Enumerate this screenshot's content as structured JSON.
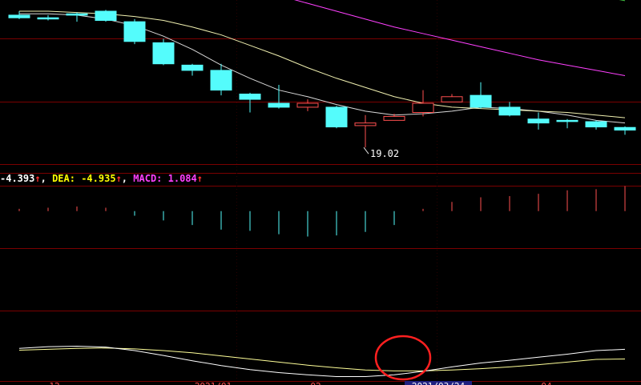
{
  "macd_legend": {
    "dif_text": "-4.393",
    "dea_label": "DEA:",
    "dea_value": "-4.935",
    "macd_label": "MACD:",
    "macd_value": "1.084",
    "arrow": "↑",
    "separator": ","
  },
  "colors": {
    "up": "#ff5050",
    "down": "#54fcfc",
    "ma5": "#d8d8d8",
    "ma10": "#f0f0b0",
    "ma20": "#ff40ff",
    "ma60": "#40c040",
    "grid": "#7a0000",
    "dif": "#ffffff",
    "dea": "#ffff99",
    "highlight": "#ff2020"
  },
  "chart_data": {
    "type": "candlestick",
    "low_annotation": "19.02",
    "x_tick_labels": [
      "12",
      "2021/01",
      "02",
      "2021/03/24",
      "04"
    ],
    "price_range": [
      18.6,
      24.2
    ],
    "candles": [
      {
        "open": 24.05,
        "close": 23.95,
        "high": 24.2,
        "low": 23.9
      },
      {
        "open": 23.95,
        "close": 23.95,
        "high": 24.05,
        "low": 23.85
      },
      {
        "open": 24.1,
        "close": 24.05,
        "high": 24.15,
        "low": 23.8
      },
      {
        "open": 24.2,
        "close": 23.85,
        "high": 24.25,
        "low": 23.8
      },
      {
        "open": 23.8,
        "close": 23.05,
        "high": 23.9,
        "low": 22.95
      },
      {
        "open": 23.0,
        "close": 22.2,
        "high": 23.15,
        "low": 22.15
      },
      {
        "open": 22.15,
        "close": 21.95,
        "high": 22.2,
        "low": 21.75
      },
      {
        "open": 21.95,
        "close": 21.2,
        "high": 22.2,
        "low": 21.0
      },
      {
        "open": 21.05,
        "close": 20.85,
        "high": 21.1,
        "low": 20.35
      },
      {
        "open": 20.7,
        "close": 20.55,
        "high": 21.4,
        "low": 20.5
      },
      {
        "open": 20.55,
        "close": 20.7,
        "high": 20.85,
        "low": 20.4
      },
      {
        "open": 20.55,
        "close": 19.8,
        "high": 20.6,
        "low": 19.75
      },
      {
        "open": 19.85,
        "close": 19.95,
        "high": 20.25,
        "low": 19.02
      },
      {
        "open": 20.05,
        "close": 20.2,
        "high": 20.3,
        "low": 20.05
      },
      {
        "open": 20.35,
        "close": 20.7,
        "high": 21.2,
        "low": 20.2
      },
      {
        "open": 20.75,
        "close": 20.95,
        "high": 21.05,
        "low": 20.75
      },
      {
        "open": 21.0,
        "close": 20.55,
        "high": 21.5,
        "low": 20.5
      },
      {
        "open": 20.55,
        "close": 20.25,
        "high": 20.75,
        "low": 20.2
      },
      {
        "open": 20.1,
        "close": 19.95,
        "high": 20.35,
        "low": 19.7
      },
      {
        "open": 20.05,
        "close": 20.05,
        "high": 20.1,
        "low": 19.75
      },
      {
        "open": 20.0,
        "close": 19.8,
        "high": 20.05,
        "low": 19.7
      },
      {
        "open": 19.78,
        "close": 19.68,
        "high": 19.82,
        "low": 19.5
      }
    ],
    "ma_lines": [
      {
        "key": "ma5",
        "values": [
          24.1,
          24.1,
          24.05,
          23.9,
          23.65,
          23.25,
          22.75,
          22.15,
          21.65,
          21.2,
          20.95,
          20.65,
          20.4,
          20.25,
          20.3,
          20.4,
          20.55,
          20.5,
          20.4,
          20.25,
          20.05,
          19.95
        ]
      },
      {
        "key": "ma10",
        "values": [
          24.2,
          24.2,
          24.15,
          24.1,
          24.0,
          23.85,
          23.6,
          23.3,
          22.9,
          22.5,
          22.05,
          21.65,
          21.3,
          20.95,
          20.7,
          20.55,
          20.5,
          20.45,
          20.4,
          20.35,
          20.25,
          20.15
        ]
      },
      {
        "key": "ma20",
        "start": 4,
        "values": [
          25.8,
          25.65,
          25.45,
          25.25,
          25.05,
          24.8,
          24.5,
          24.2,
          23.9,
          23.6,
          23.35,
          23.1,
          22.85,
          22.6,
          22.35,
          22.15,
          21.95,
          21.75
        ]
      },
      {
        "key": "ma60",
        "start": 12,
        "values": [
          26.45,
          26.2,
          26.0,
          25.8,
          25.6,
          25.4,
          25.2,
          25.0,
          24.8,
          24.6
        ]
      }
    ],
    "macd_range": [
      -1.6,
      1.1
    ],
    "macd_bars": [
      0.1,
      0.15,
      0.2,
      0.15,
      -0.2,
      -0.4,
      -0.6,
      -0.8,
      -0.85,
      -1.0,
      -1.1,
      -1.05,
      -0.9,
      -0.6,
      0.1,
      0.4,
      0.6,
      0.65,
      0.75,
      0.9,
      0.95,
      1.084
    ],
    "dif_dea_range": [
      -12,
      4
    ],
    "dif": [
      -4.6,
      -4.2,
      -4.1,
      -4.3,
      -5.1,
      -6.2,
      -7.4,
      -8.5,
      -9.4,
      -10.1,
      -10.6,
      -11.0,
      -11.0,
      -10.6,
      -9.8,
      -8.8,
      -7.9,
      -7.3,
      -6.6,
      -5.9,
      -5.1,
      -4.393
    ],
    "dea": [
      -5.0,
      -4.8,
      -4.6,
      -4.5,
      -4.7,
      -5.1,
      -5.6,
      -6.3,
      -7.0,
      -7.7,
      -8.4,
      -9.0,
      -9.5,
      -9.7,
      -9.7,
      -9.5,
      -9.2,
      -8.8,
      -8.3,
      -7.7,
      -7.1,
      -4.935
    ]
  }
}
